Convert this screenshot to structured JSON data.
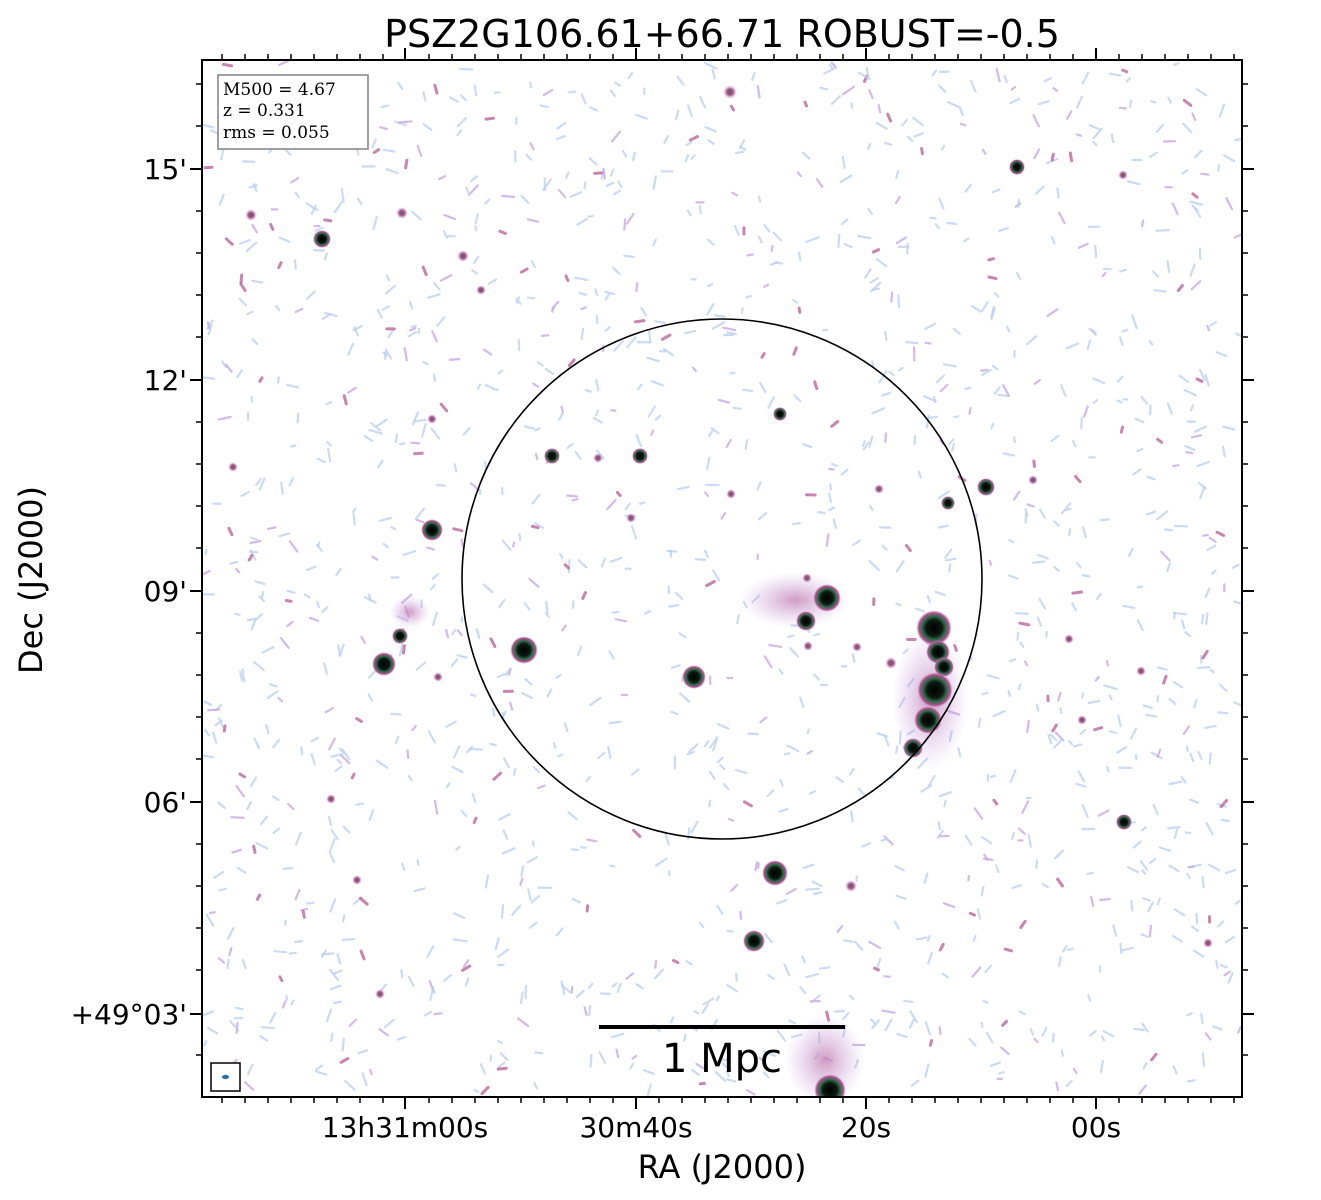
{
  "chart_data": {
    "type": "radio-image",
    "title": "PSZ2G106.61+66.71 ROBUST=-0.5",
    "xlabel": "RA (J2000)",
    "ylabel": "Dec (J2000)",
    "x_ticks": [
      "13h31m00s",
      "30m40s",
      "20s",
      "00s"
    ],
    "y_ticks": [
      "+49°03'",
      "06'",
      "09'",
      "12'",
      "15'"
    ],
    "info": {
      "lines": [
        "M500 = 4.67",
        "z = 0.331",
        "rms = 0.055"
      ]
    },
    "scalebar_label": "1 Mpc",
    "colormap": [
      "#b9cdf2",
      "#c9a8e6",
      "#b2508d",
      "#2e6a4a",
      "#000000"
    ]
  }
}
